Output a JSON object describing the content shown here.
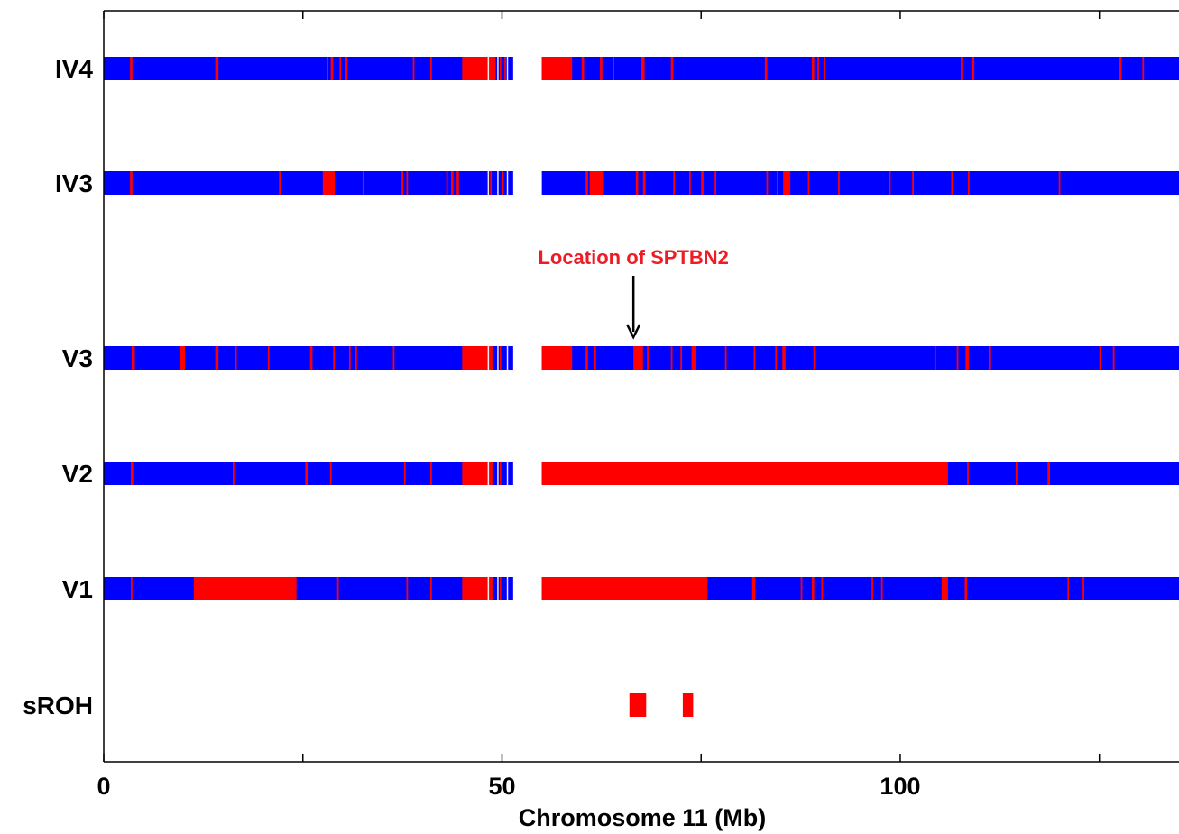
{
  "chart_data": {
    "type": "heatmap",
    "xlabel": "Chromosome 11 (Mb)",
    "xlim": [
      0,
      135
    ],
    "x_ticks": [
      0,
      25,
      50,
      75,
      100,
      125
    ],
    "x_tick_labels": [
      "0",
      "",
      "50",
      "",
      "100",
      ""
    ],
    "tracks": [
      {
        "name": "IV4",
        "homozygous_segments": [
          [
            3.3,
            3.6
          ],
          [
            14.0,
            14.4
          ],
          [
            28.0,
            28.2
          ],
          [
            28.5,
            28.8
          ],
          [
            29.6,
            29.8
          ],
          [
            30.3,
            30.6
          ],
          [
            38.8,
            39.0
          ],
          [
            41.0,
            41.2
          ],
          [
            45.0,
            49.2
          ],
          [
            49.7,
            49.9
          ],
          [
            50.3,
            50.5
          ],
          [
            55.0,
            58.8
          ],
          [
            60.0,
            60.3
          ],
          [
            62.3,
            62.6
          ],
          [
            63.9,
            64.1
          ],
          [
            67.5,
            67.9
          ],
          [
            71.2,
            71.5
          ],
          [
            83.0,
            83.3
          ],
          [
            88.9,
            89.2
          ],
          [
            89.6,
            89.8
          ],
          [
            90.4,
            90.6
          ],
          [
            107.6,
            107.8
          ],
          [
            109.0,
            109.3
          ],
          [
            127.5,
            127.8
          ],
          [
            130.4,
            130.6
          ]
        ]
      },
      {
        "name": "IV3",
        "homozygous_segments": [
          [
            3.3,
            3.6
          ],
          [
            22.0,
            22.2
          ],
          [
            27.5,
            29.0
          ],
          [
            32.5,
            32.7
          ],
          [
            37.4,
            37.6
          ],
          [
            38.0,
            38.2
          ],
          [
            43.0,
            43.2
          ],
          [
            43.6,
            43.9
          ],
          [
            44.3,
            44.6
          ],
          [
            48.5,
            48.7
          ],
          [
            50.0,
            50.2
          ],
          [
            60.5,
            60.8
          ],
          [
            61.0,
            62.8
          ],
          [
            66.8,
            67.1
          ],
          [
            67.7,
            68.0
          ],
          [
            71.5,
            71.7
          ],
          [
            73.5,
            73.7
          ],
          [
            75.0,
            75.3
          ],
          [
            76.7,
            76.9
          ],
          [
            83.2,
            83.4
          ],
          [
            84.5,
            84.7
          ],
          [
            85.3,
            86.2
          ],
          [
            88.4,
            88.6
          ],
          [
            92.2,
            92.4
          ],
          [
            98.6,
            98.8
          ],
          [
            101.5,
            101.7
          ],
          [
            106.4,
            106.6
          ],
          [
            108.5,
            108.7
          ],
          [
            119.9,
            120.1
          ]
        ]
      },
      {
        "name": "V3",
        "homozygous_segments": [
          [
            3.5,
            3.9
          ],
          [
            9.6,
            10.2
          ],
          [
            14.0,
            14.4
          ],
          [
            16.5,
            16.7
          ],
          [
            20.6,
            20.8
          ],
          [
            25.9,
            26.2
          ],
          [
            28.8,
            29.0
          ],
          [
            30.8,
            31.0
          ],
          [
            31.5,
            31.8
          ],
          [
            36.3,
            36.5
          ],
          [
            45.0,
            48.8
          ],
          [
            49.7,
            49.9
          ],
          [
            55.0,
            58.8
          ],
          [
            60.5,
            60.8
          ],
          [
            61.6,
            61.8
          ],
          [
            66.5,
            67.7
          ],
          [
            68.2,
            68.4
          ],
          [
            71.2,
            71.4
          ],
          [
            72.4,
            72.6
          ],
          [
            73.8,
            74.4
          ],
          [
            78.0,
            78.2
          ],
          [
            81.6,
            81.8
          ],
          [
            84.3,
            84.5
          ],
          [
            85.2,
            85.6
          ],
          [
            89.1,
            89.4
          ],
          [
            104.3,
            104.5
          ],
          [
            107.1,
            107.3
          ],
          [
            108.2,
            108.6
          ],
          [
            111.1,
            111.4
          ],
          [
            125.0,
            125.2
          ],
          [
            126.7,
            126.9
          ]
        ]
      },
      {
        "name": "V2",
        "homozygous_segments": [
          [
            3.4,
            3.7
          ],
          [
            16.2,
            16.4
          ],
          [
            25.3,
            25.6
          ],
          [
            28.4,
            28.6
          ],
          [
            37.7,
            37.9
          ],
          [
            41.0,
            41.2
          ],
          [
            45.0,
            48.8
          ],
          [
            49.7,
            49.9
          ],
          [
            55.0,
            106.0
          ],
          [
            108.4,
            108.6
          ],
          [
            114.5,
            114.7
          ],
          [
            118.5,
            118.8
          ]
        ]
      },
      {
        "name": "V1",
        "homozygous_segments": [
          [
            3.4,
            3.6
          ],
          [
            11.3,
            24.2
          ],
          [
            29.3,
            29.5
          ],
          [
            38.0,
            38.2
          ],
          [
            41.0,
            41.2
          ],
          [
            45.0,
            48.8
          ],
          [
            49.7,
            49.9
          ],
          [
            55.0,
            75.8
          ],
          [
            81.4,
            81.8
          ],
          [
            87.5,
            87.7
          ],
          [
            88.9,
            89.2
          ],
          [
            90.1,
            90.3
          ],
          [
            96.4,
            96.6
          ],
          [
            97.6,
            97.8
          ],
          [
            105.2,
            106.0
          ],
          [
            108.1,
            108.4
          ],
          [
            121.0,
            121.2
          ],
          [
            122.9,
            123.1
          ]
        ]
      }
    ],
    "sroh": {
      "name": "sROH",
      "segments": [
        [
          66.0,
          68.1
        ],
        [
          72.7,
          74.0
        ]
      ]
    },
    "centromere_gap": [
      51.4,
      55.0
    ],
    "annotation": {
      "text": "Location of SPTBN2",
      "x": 66.5
    },
    "colors": {
      "heterozygous": "#0000ff",
      "homozygous": "#ff0000",
      "annotation": "#ee1c25",
      "axis": "#000000"
    }
  }
}
